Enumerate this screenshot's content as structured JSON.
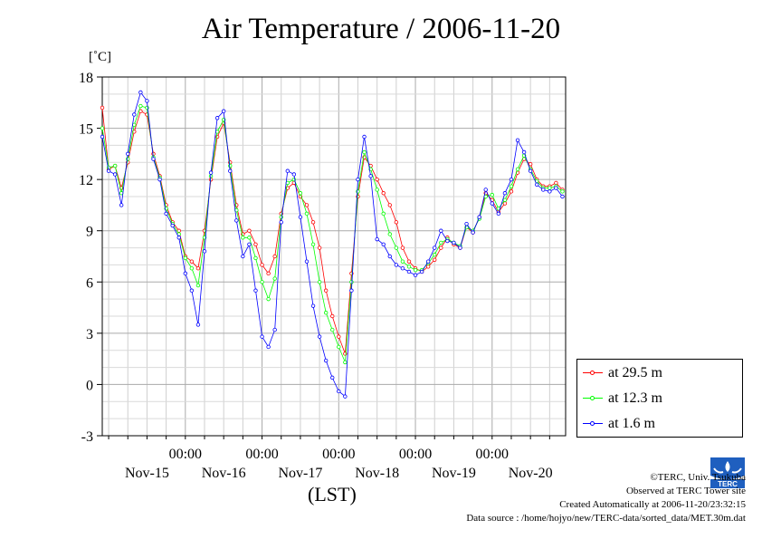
{
  "title": "Air Temperature / 2006-11-20",
  "unit_label": "[˚C]",
  "xaxis_label": "(LST)",
  "colors": {
    "series_29_5": "#ff0000",
    "series_12_3": "#00ff00",
    "series_1_6": "#0000ff"
  },
  "credits": {
    "copyright": "©TERC, Univ. Tsukuba",
    "observed": "Observed at TERC Tower site",
    "created": "Created Automatically at 2006-11-20/23:32:15",
    "source": "Data source : /home/hojyo/new/TERC-data/sorted_data/MET.30m.dat"
  },
  "logo_text": "TERC",
  "chart_data": {
    "type": "line",
    "title": "Air Temperature / 2006-11-20",
    "ylabel": "[˚C]",
    "xlabel": "(LST)",
    "ylim": [
      -3,
      18
    ],
    "yticks": [
      -3,
      0,
      3,
      6,
      9,
      12,
      15,
      18
    ],
    "ytick_labels": [
      "-3",
      "0",
      "3",
      "6",
      "9",
      "12",
      "15",
      "18"
    ],
    "xlim": [
      -1,
      71.5
    ],
    "xticks": [
      12,
      24,
      36,
      48,
      60
    ],
    "xtick_labels": [
      "00:00",
      "00:00",
      "00:00",
      "00:00",
      "00:00"
    ],
    "day_labels": [
      "Nov-15",
      "Nov-16",
      "Nov-17",
      "Nov-18",
      "Nov-19",
      "Nov-20"
    ],
    "day_label_x": [
      6,
      18,
      30,
      42,
      54,
      66
    ],
    "x_unit": "hours from 2006-11-14 12:00 LST",
    "grid": true,
    "legend_placement": "bottom-right, outside plot",
    "series": [
      {
        "name": "at 29.5 m",
        "color": "#ff0000",
        "x": [
          -1,
          0,
          1,
          2,
          3,
          4,
          5,
          6,
          7,
          8,
          9,
          10,
          11,
          12,
          13,
          14,
          15,
          16,
          17,
          18,
          19,
          20,
          21,
          22,
          23,
          24,
          25,
          26,
          27,
          28,
          29,
          30,
          31,
          32,
          33,
          34,
          35,
          36,
          37,
          38,
          39,
          40,
          41,
          42,
          43,
          44,
          45,
          46,
          47,
          48,
          49,
          50,
          51,
          52,
          53,
          54,
          55,
          56,
          57,
          58,
          59,
          60,
          61,
          62,
          63,
          64,
          65,
          66,
          67,
          68,
          69,
          70,
          71
        ],
        "y": [
          16.2,
          12.6,
          12.8,
          11.5,
          13.0,
          14.8,
          16.0,
          15.8,
          13.5,
          12.2,
          10.5,
          9.5,
          9.0,
          7.5,
          7.2,
          6.8,
          9.0,
          12.0,
          14.5,
          15.3,
          13.0,
          10.5,
          8.8,
          9.0,
          8.2,
          7.0,
          6.5,
          7.5,
          10.0,
          11.5,
          11.8,
          11.0,
          10.5,
          9.5,
          8.0,
          5.5,
          4.0,
          2.8,
          1.8,
          6.5,
          11.0,
          13.3,
          12.8,
          12.0,
          11.2,
          10.5,
          9.5,
          8.0,
          7.2,
          6.8,
          6.6,
          6.9,
          7.3,
          8.0,
          8.6,
          8.2,
          8.0,
          9.2,
          8.9,
          9.8,
          11.2,
          10.8,
          10.1,
          10.6,
          11.3,
          12.4,
          13.2,
          12.9,
          12.0,
          11.6,
          11.6,
          11.8,
          11.4
        ]
      },
      {
        "name": "at 12.3 m",
        "color": "#00ff00",
        "x": [
          -1,
          0,
          1,
          2,
          3,
          4,
          5,
          6,
          7,
          8,
          9,
          10,
          11,
          12,
          13,
          14,
          15,
          16,
          17,
          18,
          19,
          20,
          21,
          22,
          23,
          24,
          25,
          26,
          27,
          28,
          29,
          30,
          31,
          32,
          33,
          34,
          35,
          36,
          37,
          38,
          39,
          40,
          41,
          42,
          43,
          44,
          45,
          46,
          47,
          48,
          49,
          50,
          51,
          52,
          53,
          54,
          55,
          56,
          57,
          58,
          59,
          60,
          61,
          62,
          63,
          64,
          65,
          66,
          67,
          68,
          69,
          70,
          71
        ],
        "y": [
          15.0,
          12.7,
          12.8,
          11.2,
          13.2,
          15.2,
          16.3,
          16.2,
          13.3,
          12.1,
          10.3,
          9.4,
          8.8,
          7.4,
          6.8,
          5.8,
          8.6,
          12.2,
          14.8,
          15.5,
          12.8,
          10.2,
          8.6,
          8.6,
          7.4,
          6.0,
          5.0,
          6.2,
          9.8,
          11.8,
          12.0,
          11.2,
          10.0,
          8.2,
          6.0,
          4.2,
          3.2,
          2.2,
          1.3,
          6.0,
          11.3,
          13.6,
          12.6,
          11.4,
          10.0,
          8.8,
          8.0,
          7.2,
          6.9,
          6.7,
          6.7,
          7.1,
          7.6,
          8.3,
          8.5,
          8.3,
          8.1,
          9.2,
          9.0,
          9.7,
          11.0,
          11.1,
          10.3,
          10.8,
          11.6,
          12.6,
          13.4,
          12.6,
          11.9,
          11.5,
          11.5,
          11.6,
          11.3
        ]
      },
      {
        "name": "at 1.6 m",
        "color": "#0000ff",
        "x": [
          -1,
          0,
          1,
          2,
          3,
          4,
          5,
          6,
          7,
          8,
          9,
          10,
          11,
          12,
          13,
          14,
          15,
          16,
          17,
          18,
          19,
          20,
          21,
          22,
          23,
          24,
          25,
          26,
          27,
          28,
          29,
          30,
          31,
          32,
          33,
          34,
          35,
          36,
          37,
          38,
          39,
          40,
          41,
          42,
          43,
          44,
          45,
          46,
          47,
          48,
          49,
          50,
          51,
          52,
          53,
          54,
          55,
          56,
          57,
          58,
          59,
          60,
          61,
          62,
          63,
          64,
          65,
          66,
          67,
          68,
          69,
          70,
          71
        ],
        "y": [
          14.5,
          12.5,
          12.3,
          10.5,
          13.5,
          15.8,
          17.1,
          16.6,
          13.2,
          12.0,
          10.0,
          9.3,
          8.6,
          6.5,
          5.5,
          3.5,
          7.8,
          12.4,
          15.6,
          16.0,
          12.5,
          9.6,
          7.5,
          8.2,
          5.5,
          2.8,
          2.2,
          3.2,
          9.5,
          12.5,
          12.3,
          9.8,
          7.2,
          4.6,
          2.8,
          1.4,
          0.4,
          -0.4,
          -0.7,
          5.5,
          12.0,
          14.5,
          12.2,
          8.5,
          8.2,
          7.5,
          7.0,
          6.8,
          6.6,
          6.4,
          6.6,
          7.2,
          8.0,
          9.0,
          8.4,
          8.3,
          8.0,
          9.4,
          8.9,
          9.8,
          11.4,
          10.6,
          10.0,
          11.2,
          12.0,
          14.3,
          13.6,
          12.5,
          11.7,
          11.4,
          11.3,
          11.5,
          11.0
        ]
      }
    ]
  }
}
